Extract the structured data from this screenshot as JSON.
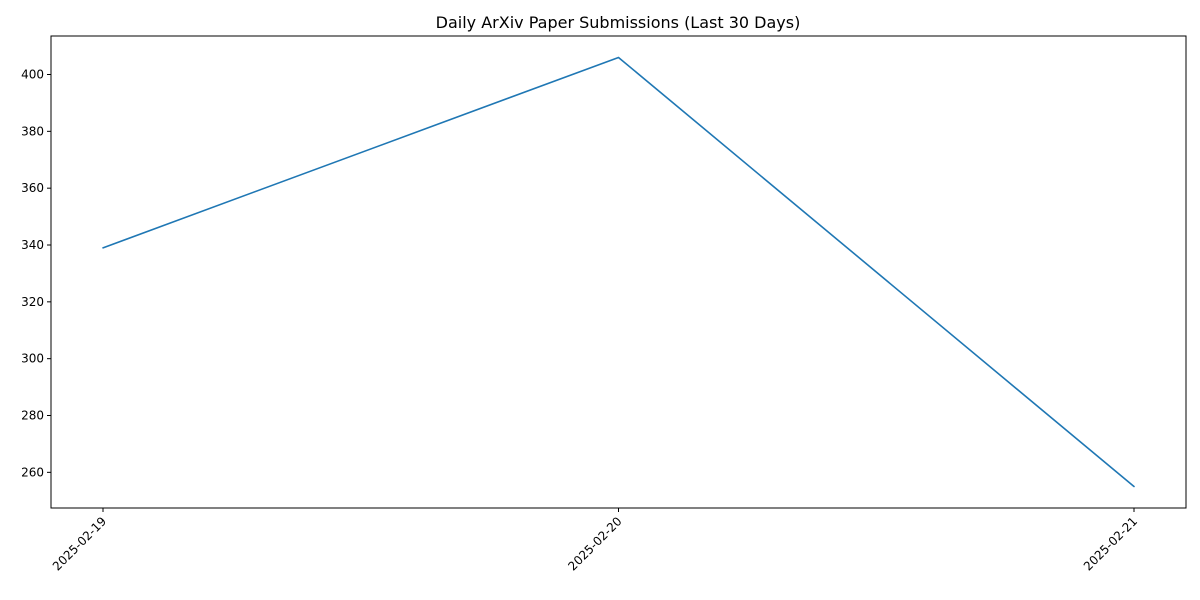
{
  "chart_data": {
    "type": "line",
    "title": "Daily ArXiv Paper Submissions (Last 30 Days)",
    "xlabel": "",
    "ylabel": "",
    "x": [
      "2025-02-19",
      "2025-02-20",
      "2025-02-21"
    ],
    "series": [
      {
        "values": [
          339,
          406,
          255
        ],
        "color": "#1f77b4"
      }
    ],
    "yticks": [
      260,
      280,
      300,
      320,
      340,
      360,
      380,
      400
    ],
    "ylim": [
      247.45,
      413.55
    ],
    "grid": false,
    "legend": "none",
    "xtick_rotation_deg": 45
  }
}
